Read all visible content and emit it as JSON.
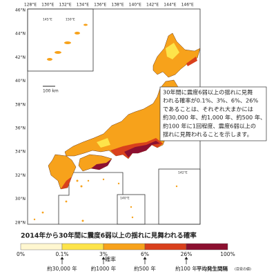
{
  "map": {
    "lon_labels": [
      "128°E",
      "130°E",
      "132°E",
      "134°E",
      "136°E",
      "138°E",
      "140°E",
      "142°E",
      "144°E",
      "146°E"
    ],
    "lat_labels": [
      "46°N",
      "44°N",
      "42°N",
      "40°N",
      "38°N",
      "36°N",
      "34°N",
      "32°N",
      "30°N",
      "28°N"
    ],
    "inset_labels": [
      "145°E",
      "150°E",
      "140°E",
      "142°E"
    ],
    "scale_label": "100 km"
  },
  "note": {
    "lines": [
      "30年間に震度6弱以上の揺れに見舞",
      "われる確率が0.1%、3%、6%、26%",
      "であることは、それぞれ大まかには",
      "約30,000 年、約1,000 年、約500 年、",
      "約100 年に1回程度、震度6弱以上の",
      "揺れに見舞われることを示します。"
    ]
  },
  "legend": {
    "title": "2014年から30年間に震度6弱以上の揺れに見舞われる確率",
    "colors": [
      "#fff7d0",
      "#fde44a",
      "#f7a21b",
      "#d9401c",
      "#8c1030"
    ],
    "ticks": [
      "0%",
      "0.1%",
      "3%",
      "6%",
      "26%",
      "100%"
    ],
    "axis_label": "確率",
    "intervals": [
      "約30,000 年",
      "約1000 年",
      "約500 年",
      "約100 年"
    ],
    "interval_title": "平均発生間隔",
    "interval_note": "(目安の値)"
  }
}
